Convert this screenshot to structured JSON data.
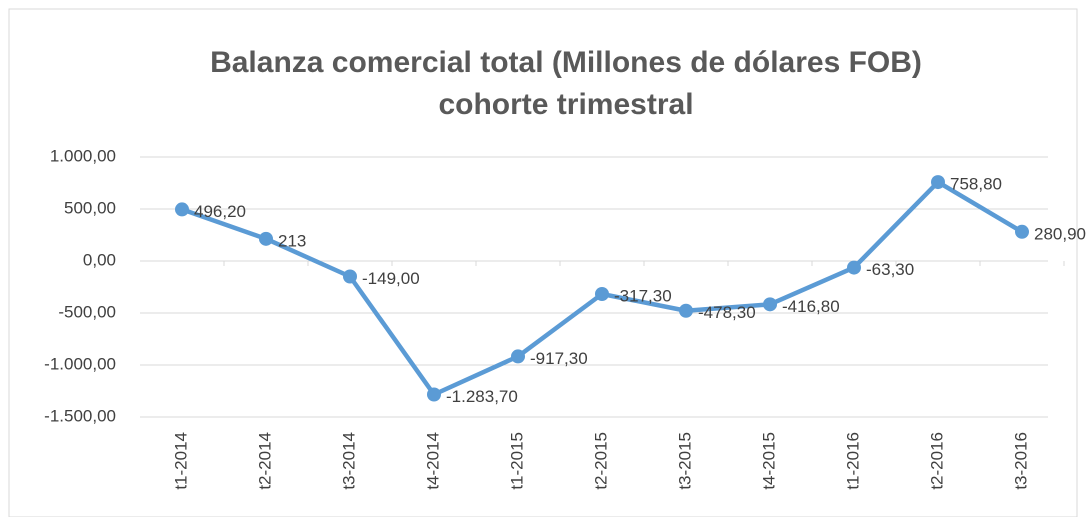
{
  "chart_data": {
    "type": "line",
    "title": [
      "Balanza comercial total (Millones de dólares FOB)",
      "cohorte trimestral"
    ],
    "categories": [
      "t1-2014",
      "t2-2014",
      "t3-2014",
      "t4-2014",
      "t1-2015",
      "t2-2015",
      "t3-2015",
      "t4-2015",
      "t1-2016",
      "t2-2016",
      "t3-2016"
    ],
    "series": [
      {
        "color": "#5b9bd5",
        "values": [
          496.2,
          213,
          -149,
          -1283.7,
          -917.3,
          -317.3,
          -478.3,
          -416.8,
          -63.3,
          758.8,
          280.9
        ],
        "value_labels": [
          "496,20",
          "213",
          "-149,00",
          "-1.283,70",
          "-917,30",
          "-317,30",
          "-478,30",
          "-416,80",
          "-63,30",
          "758,80",
          "280,90"
        ]
      }
    ],
    "ylim": [
      -1500,
      1000
    ],
    "yticks": [
      {
        "value": -1500,
        "label": "-1.500,00"
      },
      {
        "value": -1000,
        "label": "-1.000,00"
      },
      {
        "value": -500,
        "label": "-500,00"
      },
      {
        "value": 0,
        "label": "0,00"
      },
      {
        "value": 500,
        "label": "500,00"
      },
      {
        "value": 1000,
        "label": "1.000,00"
      }
    ],
    "grid": true
  }
}
